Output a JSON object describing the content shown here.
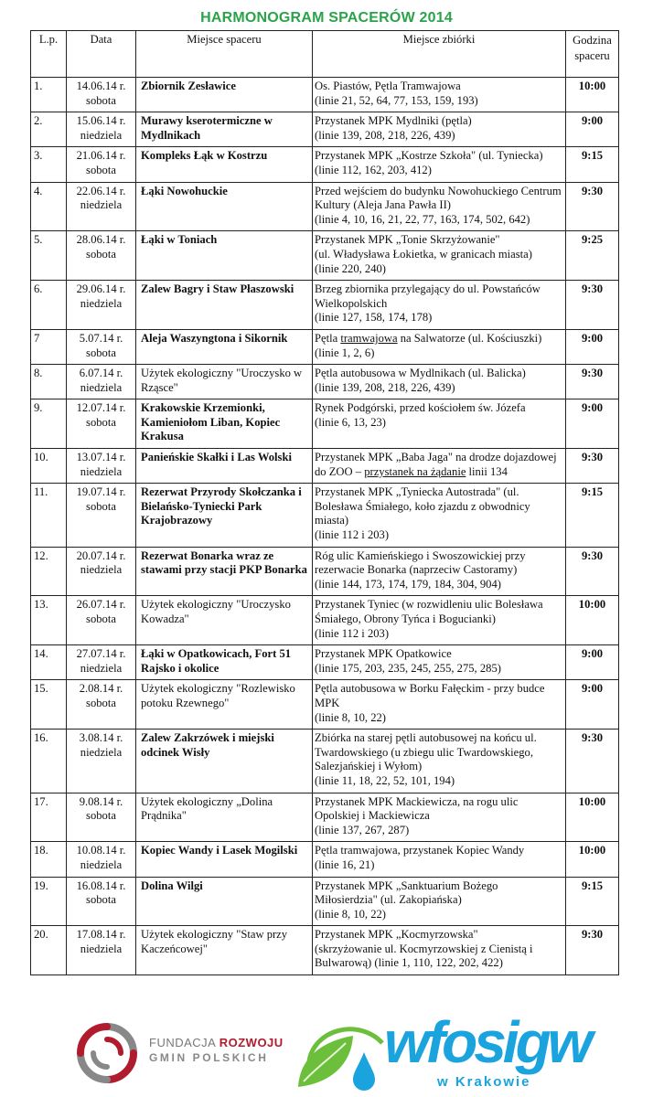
{
  "title": "HARMONOGRAM SPACERÓW 2014",
  "table": {
    "headers": [
      "L.p.",
      "Data",
      "Miejsce spaceru",
      "Miejsce zbiórki",
      "Godzina spaceru"
    ],
    "rows": [
      {
        "lp": "1.",
        "date": "14.06.14 r.",
        "day": "sobota",
        "place": "Zbiornik Zesławice",
        "meeting": [
          "Os. Piastów, Pętla Tramwajowa",
          "(linie 21, 52, 64, 77, 153, 159, 193)"
        ],
        "time": "10:00"
      },
      {
        "lp": "2.",
        "date": "15.06.14 r.",
        "day": "niedziela",
        "place": "Murawy kserotermiczne w Mydlnikach",
        "meeting": [
          "Przystanek MPK Mydlniki (pętla)",
          "(linie 139, 208, 218, 226, 439)"
        ],
        "time": "9:00"
      },
      {
        "lp": "3.",
        "date": "21.06.14 r.",
        "day": "sobota",
        "place": "Kompleks Łąk w Kostrzu",
        "meeting": [
          "Przystanek MPK „Kostrze Szkoła\" (ul. Tyniecka)",
          "(linie 112, 162, 203, 412)"
        ],
        "time": "9:15"
      },
      {
        "lp": "4.",
        "date": "22.06.14 r.",
        "day": "niedziela",
        "place": "Łąki Nowohuckie",
        "meeting": [
          "Przed wejściem do budynku Nowohuckiego Centrum Kultury (Aleja Jana Pawła II)",
          "(linie 4, 10, 16, 21, 22, 77, 163, 174, 502, 642)"
        ],
        "time": "9:30"
      },
      {
        "lp": "5.",
        "date": "28.06.14 r.",
        "day": "sobota",
        "place": "Łąki w Toniach",
        "meeting": [
          "Przystanek MPK „Tonie Skrzyżowanie\"",
          "(ul. Władysława Łokietka, w granicach miasta)",
          "(linie 220, 240)"
        ],
        "time": "9:25"
      },
      {
        "lp": "6.",
        "date": "29.06.14 r.",
        "day": "niedziela",
        "place": "Zalew Bagry i Staw Płaszowski",
        "meeting": [
          "Brzeg zbiornika przylegający do ul. Powstańców Wielkopolskich",
          "(linie 127, 158, 174, 178)"
        ],
        "time": "9:30"
      },
      {
        "lp": "7",
        "date": "5.07.14 r.",
        "day": "sobota",
        "place": "Aleja Waszyngtona i Sikornik",
        "meeting": [
          [
            {
              "t": "Pętla "
            },
            {
              "t": "tramwajowa",
              "u": true
            },
            {
              "t": " na Salwatorze (ul. Kościuszki)"
            }
          ],
          "(linie 1, 2, 6)"
        ],
        "time": "9:00"
      },
      {
        "lp": "8.",
        "date": "6.07.14 r.",
        "day": "niedziela",
        "place": "Użytek ekologiczny \"Uroczysko w Rząsce\"",
        "regular": true,
        "meeting": [
          "Pętla autobusowa w Mydlnikach (ul. Balicka)",
          "(linie 139, 208, 218, 226, 439)"
        ],
        "time": "9:30"
      },
      {
        "lp": "9.",
        "date": "12.07.14 r.",
        "day": "sobota",
        "place": "Krakowskie Krzemionki, Kamieniołom Liban, Kopiec Krakusa",
        "meeting": [
          "Rynek Podgórski, przed  kościołem św. Józefa",
          "(linie 6, 13, 23)"
        ],
        "time": "9:00"
      },
      {
        "lp": "10.",
        "date": "13.07.14 r.",
        "day": "niedziela",
        "place": "Panieńskie Skałki i Las Wolski",
        "meeting": [
          [
            {
              "t": "Przystanek MPK „Baba Jaga\" na drodze dojazdowej do ZOO – "
            },
            {
              "t": "przystanek na żądanie",
              "u": true
            },
            {
              "t": " linii 134"
            }
          ]
        ],
        "time": "9:30"
      },
      {
        "lp": "11.",
        "date": "19.07.14 r.",
        "day": "sobota",
        "place": "Rezerwat Przyrody Skołczanka i Bielańsko-Tyniecki Park Krajobrazowy",
        "meeting": [
          "Przystanek MPK „Tyniecka Autostrada\" (ul. Bolesława Śmiałego, koło zjazdu z obwodnicy miasta)",
          "(linie 112 i 203)"
        ],
        "time": "9:15"
      },
      {
        "lp": "12.",
        "date": "20.07.14 r.",
        "day": "niedziela",
        "place": "Rezerwat Bonarka wraz ze stawami przy stacji PKP Bonarka",
        "meeting": [
          "Róg ulic Kamieńskiego i Swoszowickiej przy rezerwacie Bonarka (naprzeciw Castoramy)",
          "(linie 144, 173, 174, 179, 184, 304, 904)"
        ],
        "time": "9:30"
      },
      {
        "lp": "13.",
        "date": "26.07.14 r.",
        "day": "sobota",
        "place": "Użytek ekologiczny \"Uroczysko Kowadza\"",
        "regular": true,
        "meeting": [
          "Przystanek Tyniec (w rozwidleniu ulic Bolesława Śmiałego, Obrony Tyńca i Bogucianki)",
          "(linie 112 i 203)"
        ],
        "time": "10:00"
      },
      {
        "lp": "14.",
        "date": "27.07.14 r.",
        "day": "niedziela",
        "place": "Łąki w Opatkowicach, Fort 51 Rajsko i okolice",
        "meeting": [
          "Przystanek MPK Opatkowice",
          "(linie 175, 203, 235, 245, 255, 275, 285)"
        ],
        "time": "9:00"
      },
      {
        "lp": "15.",
        "date": "2.08.14 r.",
        "day": "sobota",
        "place": "Użytek ekologiczny \"Rozlewisko potoku Rzewnego\"",
        "regular": true,
        "meeting": [
          "Pętla autobusowa w Borku Fałęckim - przy budce MPK",
          "(linie 8, 10, 22)"
        ],
        "time": "9:00"
      },
      {
        "lp": "16.",
        "date": "3.08.14 r.",
        "day": "niedziela",
        "place": "Zalew Zakrzówek i miejski odcinek Wisły",
        "meeting": [
          "Zbiórka na starej pętli autobusowej na końcu ul. Twardowskiego (u zbiegu ulic Twardowskiego, Salezjańskiej i Wyłom)",
          "(linie 11, 18, 22, 52, 101, 194)"
        ],
        "time": "9:30"
      },
      {
        "lp": "17.",
        "date": "9.08.14 r.",
        "day": "sobota",
        "place": "Użytek ekologiczny „Dolina Prądnika\"",
        "regular": true,
        "meeting": [
          "Przystanek MPK Mackiewicza, na rogu ulic Opolskiej i Mackiewicza",
          "(linie 137, 267, 287)"
        ],
        "time": "10:00"
      },
      {
        "lp": "18.",
        "date": "10.08.14 r.",
        "day": "niedziela",
        "place": "Kopiec Wandy i Lasek Mogilski",
        "meeting": [
          "Pętla tramwajowa, przystanek Kopiec Wandy",
          "(linie 16, 21)"
        ],
        "time": "10:00"
      },
      {
        "lp": "19.",
        "date": "16.08.14 r.",
        "day": "sobota",
        "place": "Dolina Wilgi",
        "meeting": [
          "Przystanek MPK „Sanktuarium Bożego Miłosierdzia\" (ul. Zakopiańska)",
          "(linie 8, 10, 22)"
        ],
        "time": "9:15"
      },
      {
        "lp": "20.",
        "date": "17.08.14 r.",
        "day": "niedziela",
        "place": "Użytek ekologiczny \"Staw przy Kaczeńcowej\"",
        "regular": true,
        "meeting": [
          "Przystanek MPK „Kocmyrzowska\"",
          "(skrzyżowanie ul. Kocmyrzowskiej z Cienistą i Bulwarową) (linie 1, 110, 122, 202, 422)"
        ],
        "time": "9:30"
      }
    ]
  },
  "logos": {
    "fundacja": {
      "line1a": "FUNDACJA ",
      "line1b": "ROZWOJU",
      "line2": "GMIN POLSKICH",
      "colors": {
        "red": "#b01c2e",
        "gray": "#888888"
      }
    },
    "wfosigw": {
      "name": "wfosigw",
      "sub": "w Krakowie",
      "colors": {
        "blue": "#1aa3dd",
        "green": "#6cbf3a"
      }
    }
  },
  "colors": {
    "title": "#2aa34a"
  }
}
